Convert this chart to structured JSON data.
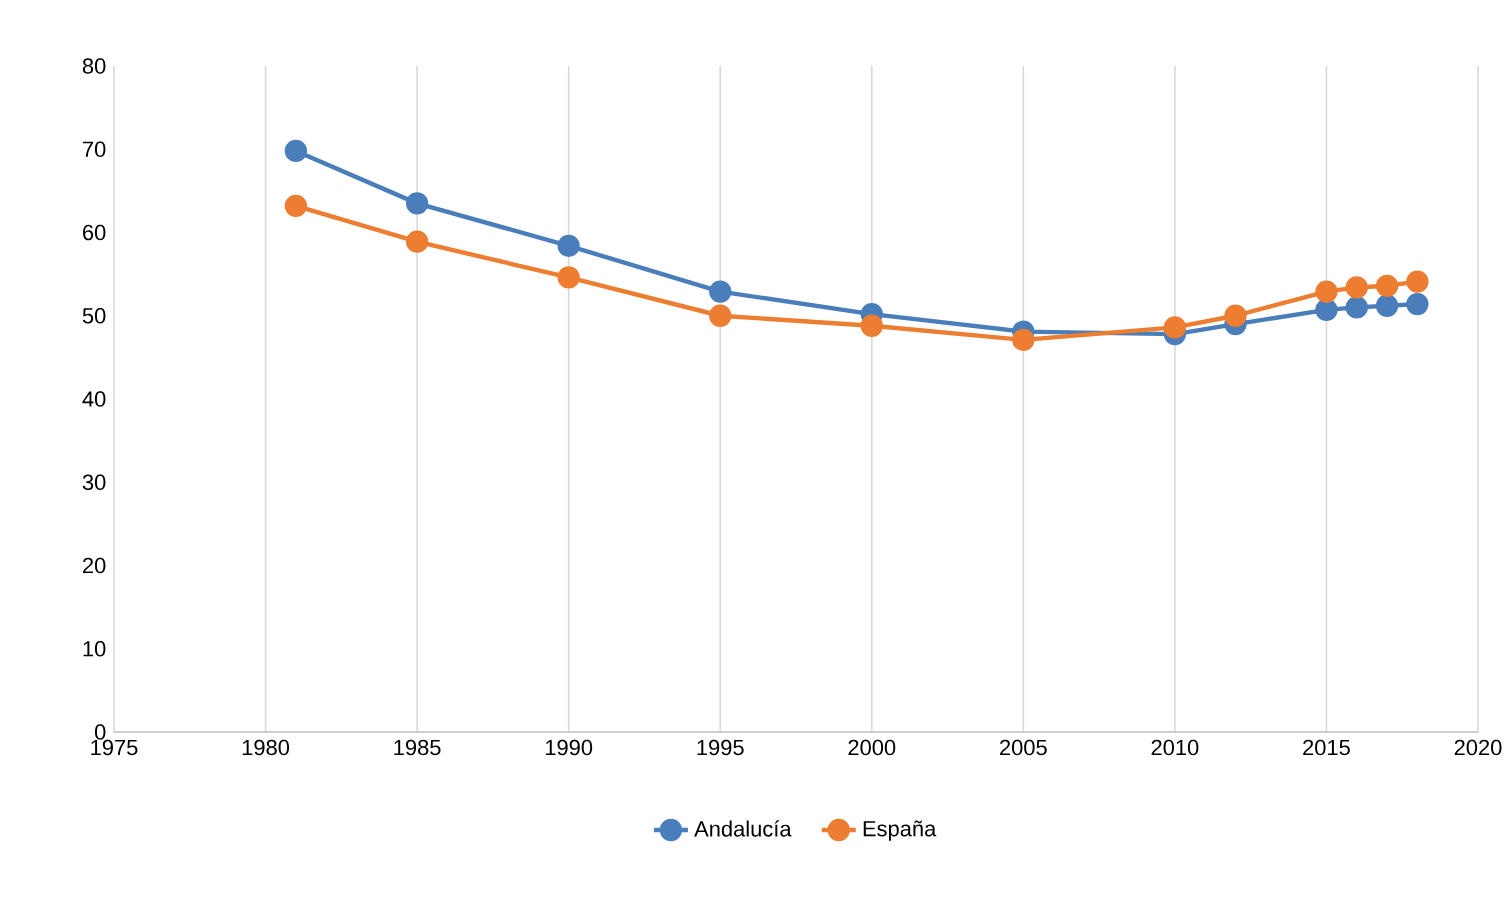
{
  "chart_data": {
    "type": "line",
    "x": [
      1981,
      1985,
      1990,
      1995,
      2000,
      2005,
      2010,
      2012,
      2015,
      2016,
      2017,
      2018
    ],
    "series": [
      {
        "name": "Andalucía",
        "color": "#4a7ebb",
        "values": [
          69.8,
          63.5,
          58.4,
          52.9,
          50.2,
          48.1,
          47.8,
          49.0,
          50.7,
          51.0,
          51.2,
          51.4
        ]
      },
      {
        "name": "España",
        "color": "#ed7d31",
        "values": [
          63.2,
          58.9,
          54.6,
          50.0,
          48.8,
          47.1,
          48.6,
          50.0,
          52.9,
          53.4,
          53.6,
          54.1
        ]
      }
    ],
    "xlim": [
      1975,
      2020
    ],
    "xticks": [
      1975,
      1980,
      1985,
      1990,
      1995,
      2000,
      2005,
      2010,
      2015,
      2020
    ],
    "ylim": [
      0,
      80
    ],
    "yticks": [
      0,
      10,
      20,
      30,
      40,
      50,
      60,
      70,
      80
    ],
    "grid": "x",
    "legend": "bottom",
    "marker": "circle",
    "line_style": "solid"
  }
}
